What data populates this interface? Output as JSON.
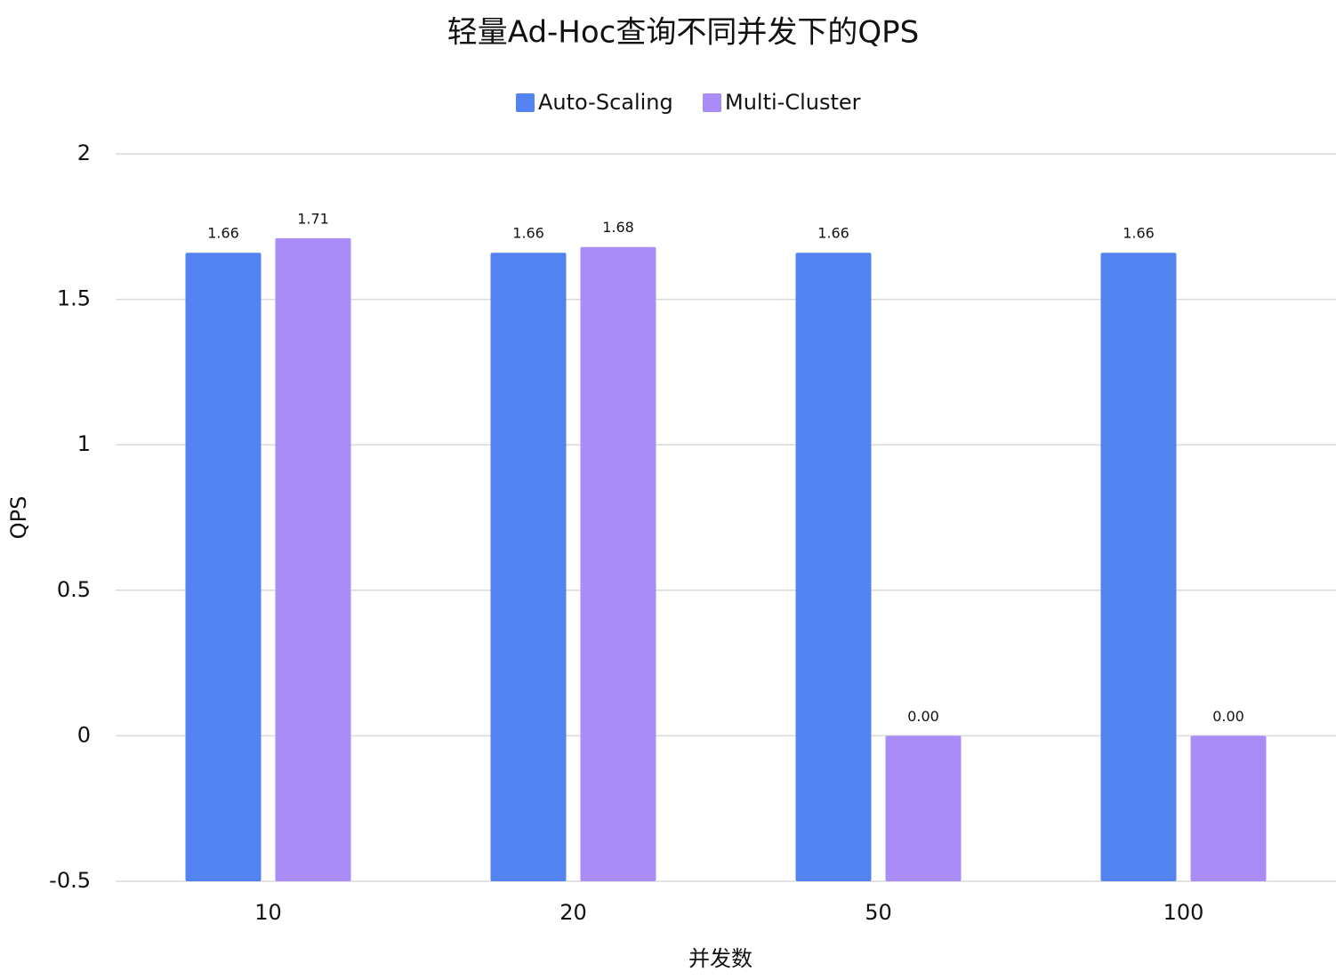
{
  "chart_data": {
    "type": "bar",
    "title": "轻量Ad-Hoc查询不同并发下的QPS",
    "x_label": "并发数",
    "y_label": "QPS",
    "categories": [
      "10",
      "20",
      "50",
      "100"
    ],
    "series": [
      {
        "name": "Auto-Scaling",
        "color": "#5383f0",
        "values": [
          1.66,
          1.66,
          1.66,
          1.66
        ],
        "value_labels": [
          "1.66",
          "1.66",
          "1.66",
          "1.66"
        ]
      },
      {
        "name": "Multi-Cluster",
        "color": "#a98cf6",
        "values": [
          1.71,
          1.68,
          0,
          0
        ],
        "value_labels": [
          "1.71",
          "1.68",
          "0.00",
          "0.00"
        ]
      }
    ],
    "ylim": [
      -0.5,
      2
    ],
    "yticks": [
      -0.5,
      0,
      0.5,
      1,
      1.5,
      2
    ],
    "grid": true,
    "legend": "top"
  }
}
